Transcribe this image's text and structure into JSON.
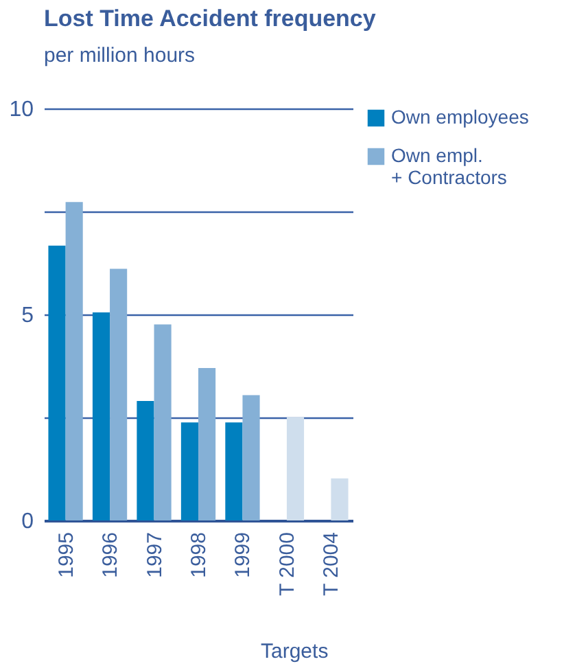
{
  "chart_data": {
    "type": "bar",
    "title": "Lost Time Accident frequency",
    "subtitle": "per million hours",
    "categories": [
      "1995",
      "1996",
      "1997",
      "1998",
      "1999",
      "T 2000",
      "T 2004"
    ],
    "series": [
      {
        "name": "Own employees",
        "color": "#0080bf",
        "values": [
          6.67,
          5.05,
          2.9,
          2.38,
          2.38,
          null,
          null
        ]
      },
      {
        "name": "Own empl. + Contractors",
        "color": "#85b0d6",
        "values": [
          7.73,
          6.11,
          4.76,
          3.7,
          3.04,
          2.51,
          1.02
        ],
        "colors": [
          "#85b0d6",
          "#85b0d6",
          "#85b0d6",
          "#85b0d6",
          "#85b0d6",
          "#cfdeed",
          "#cfdeed"
        ]
      }
    ],
    "ylim": [
      0,
      10
    ],
    "yticks": [
      0,
      {
        "value": 2.5,
        "label": null
      },
      5,
      {
        "value": 7.5,
        "label": null
      },
      10
    ],
    "grid": "y",
    "legend": "top right",
    "annotations": [
      "Targets"
    ]
  }
}
